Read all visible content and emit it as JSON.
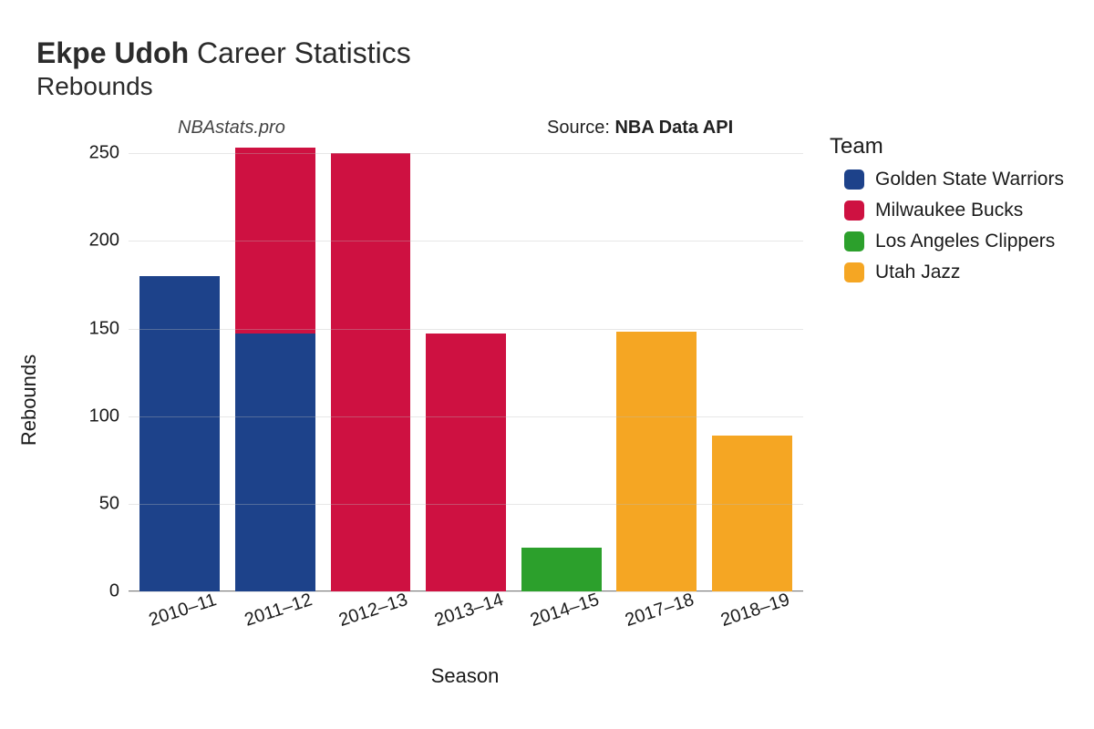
{
  "title": {
    "player": "Ekpe Udoh",
    "suffix": "Career Statistics",
    "metric": "Rebounds"
  },
  "annotations": {
    "left": "NBAstats.pro",
    "right_prefix": "Source: ",
    "right_bold": "NBA Data API"
  },
  "chart": {
    "type": "stacked-bar",
    "ylabel": "Rebounds",
    "xlabel": "Season",
    "ylim": [
      0,
      260
    ],
    "yticks": [
      0,
      50,
      100,
      150,
      200,
      250
    ],
    "background_color": "#ffffff",
    "grid_color": "#b9b9b9",
    "tick_fontsize": 20,
    "label_fontsize": 22,
    "categories": [
      "2010–11",
      "2011–12",
      "2012–13",
      "2013–14",
      "2014–15",
      "2017–18",
      "2018–19"
    ],
    "teams": [
      {
        "name": "Golden State Warriors",
        "color": "#1d428a"
      },
      {
        "name": "Milwaukee Bucks",
        "color": "#ce1141"
      },
      {
        "name": "Los Angeles Clippers",
        "color": "#2ca02c"
      },
      {
        "name": "Utah Jazz",
        "color": "#f5a623"
      }
    ],
    "series": [
      {
        "season": "2010–11",
        "segments": [
          {
            "team": "Golden State Warriors",
            "value": 180
          }
        ]
      },
      {
        "season": "2011–12",
        "segments": [
          {
            "team": "Golden State Warriors",
            "value": 147
          },
          {
            "team": "Milwaukee Bucks",
            "value": 106
          }
        ]
      },
      {
        "season": "2012–13",
        "segments": [
          {
            "team": "Milwaukee Bucks",
            "value": 250
          }
        ]
      },
      {
        "season": "2013–14",
        "segments": [
          {
            "team": "Milwaukee Bucks",
            "value": 147
          }
        ]
      },
      {
        "season": "2014–15",
        "segments": [
          {
            "team": "Los Angeles Clippers",
            "value": 25
          }
        ]
      },
      {
        "season": "2017–18",
        "segments": [
          {
            "team": "Utah Jazz",
            "value": 148
          }
        ]
      },
      {
        "season": "2018–19",
        "segments": [
          {
            "team": "Utah Jazz",
            "value": 89
          }
        ]
      }
    ],
    "legend_title": "Team"
  }
}
